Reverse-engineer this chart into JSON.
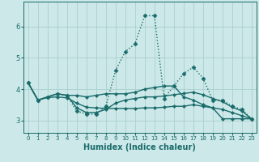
{
  "xlabel": "Humidex (Indice chaleur)",
  "xlim": [
    -0.5,
    23.5
  ],
  "ylim": [
    2.6,
    6.8
  ],
  "yticks": [
    3,
    4,
    5,
    6
  ],
  "xticks": [
    0,
    1,
    2,
    3,
    4,
    5,
    6,
    7,
    8,
    9,
    10,
    11,
    12,
    13,
    14,
    15,
    16,
    17,
    18,
    19,
    20,
    21,
    22,
    23
  ],
  "bg_color": "#cce8e8",
  "line_color": "#1a6b6b",
  "grid_color": "#aacfcf",
  "lines": [
    {
      "x": [
        0,
        1,
        2,
        3,
        4,
        5,
        6,
        7,
        8,
        9,
        10,
        11,
        12,
        13,
        14,
        15,
        16,
        17,
        18,
        19,
        20,
        21,
        22,
        23
      ],
      "y": [
        4.2,
        3.65,
        3.75,
        3.85,
        3.8,
        3.3,
        3.2,
        3.2,
        3.45,
        4.6,
        5.2,
        5.45,
        6.35,
        6.35,
        3.7,
        4.1,
        4.5,
        4.7,
        4.35,
        3.65,
        3.65,
        3.45,
        3.35,
        3.05
      ],
      "style": "dotted",
      "lw": 1.0,
      "marker": "D",
      "ms": 2.5
    },
    {
      "x": [
        0,
        1,
        2,
        3,
        4,
        5,
        6,
        7,
        8,
        9,
        10,
        11,
        12,
        13,
        14,
        15,
        16,
        17,
        18,
        19,
        20,
        21,
        22,
        23
      ],
      "y": [
        4.2,
        3.65,
        3.75,
        3.85,
        3.8,
        3.8,
        3.75,
        3.8,
        3.85,
        3.85,
        3.85,
        3.9,
        4.0,
        4.05,
        4.1,
        4.1,
        3.75,
        3.65,
        3.5,
        3.4,
        3.05,
        3.05,
        3.05,
        3.05
      ],
      "style": "solid",
      "lw": 1.0,
      "marker": "D",
      "ms": 2.0
    },
    {
      "x": [
        0,
        1,
        2,
        3,
        4,
        5,
        6,
        7,
        8,
        9,
        10,
        11,
        12,
        13,
        14,
        15,
        16,
        17,
        18,
        19,
        20,
        21,
        22,
        23
      ],
      "y": [
        4.2,
        3.65,
        3.75,
        3.85,
        3.8,
        3.4,
        3.25,
        3.25,
        3.35,
        3.55,
        3.65,
        3.7,
        3.75,
        3.75,
        3.78,
        3.82,
        3.86,
        3.9,
        3.82,
        3.7,
        3.6,
        3.42,
        3.3,
        3.05
      ],
      "style": "solid",
      "lw": 1.0,
      "marker": "D",
      "ms": 2.0
    },
    {
      "x": [
        0,
        1,
        2,
        3,
        4,
        5,
        6,
        7,
        8,
        9,
        10,
        11,
        12,
        13,
        14,
        15,
        16,
        17,
        18,
        19,
        20,
        21,
        22,
        23
      ],
      "y": [
        4.2,
        3.65,
        3.73,
        3.75,
        3.72,
        3.55,
        3.42,
        3.4,
        3.38,
        3.38,
        3.38,
        3.38,
        3.4,
        3.4,
        3.42,
        3.45,
        3.45,
        3.5,
        3.45,
        3.4,
        3.35,
        3.25,
        3.15,
        3.05
      ],
      "style": "solid",
      "lw": 1.0,
      "marker": "D",
      "ms": 2.0
    }
  ]
}
